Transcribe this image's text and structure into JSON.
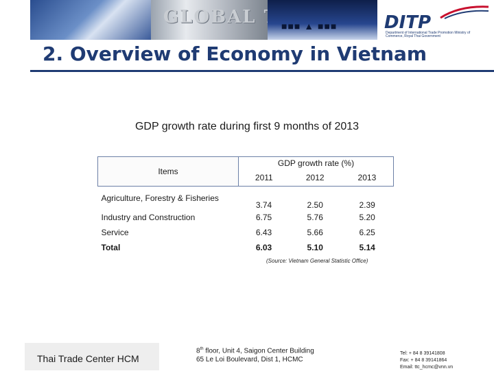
{
  "header": {
    "banner_text": "GLOBAL TRADE",
    "logo": "DITP",
    "logo_subtitle": "Department of International Trade Promotion Ministry of Commerce, Royal Thai Government"
  },
  "slide": {
    "title": "2. Overview of Economy in Vietnam",
    "table_title": "GDP growth rate during first 9 months of 2013",
    "source": "(Source: Vietnam General Statistic Office)"
  },
  "table": {
    "items_header": "Items",
    "growth_header": "GDP growth rate (%)",
    "years": [
      "2011",
      "2012",
      "2013"
    ],
    "rows": [
      {
        "label": "Agriculture, Forestry & Fisheries",
        "values": [
          "3.74",
          "2.50",
          "2.39"
        ]
      },
      {
        "label": "Industry and Construction",
        "values": [
          "6.75",
          "5.76",
          "5.20"
        ]
      },
      {
        "label": "Service",
        "values": [
          "6.43",
          "5.66",
          "6.25"
        ]
      },
      {
        "label": "Total",
        "values": [
          "6.03",
          "5.10",
          "5.14"
        ]
      }
    ]
  },
  "footer": {
    "org": "Thai Trade Center HCM",
    "address_line1_a": "8",
    "address_line1_sup": "th",
    "address_line1_b": " floor, Unit 4, Saigon Center Building",
    "address_line2": "65 Le Loi Boulevard, Dist 1, HCMC",
    "tel": "Tel: + 84 8 39141808",
    "fax": "Fax: + 84 8 39141864",
    "email": "Email: ttc_hcmc@vnn.vn"
  },
  "colors": {
    "brand_navy": "#1f3b73",
    "logo_red": "#c8102e"
  }
}
